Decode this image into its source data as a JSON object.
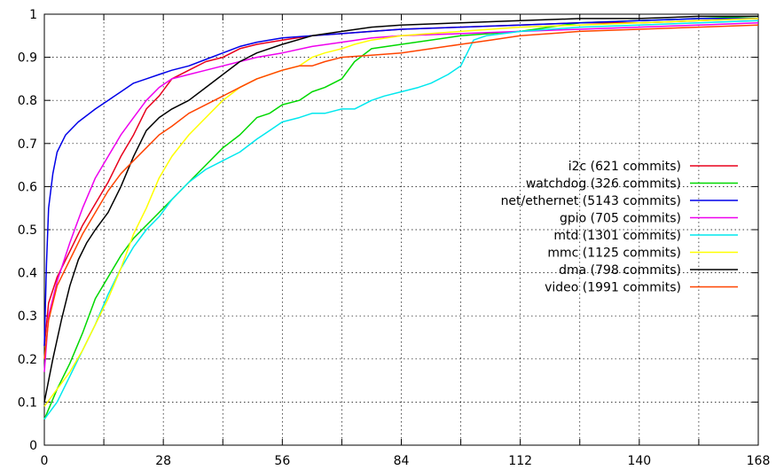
{
  "chart_data": {
    "type": "line",
    "title": "",
    "xlabel": "",
    "ylabel": "",
    "xlim": [
      0,
      168
    ],
    "ylim": [
      0,
      1
    ],
    "xticks": [
      0,
      28,
      56,
      84,
      112,
      140,
      168
    ],
    "xtick_labels": [
      "0",
      "28",
      "56",
      "84",
      "112",
      "140",
      "168"
    ],
    "xgrid": [
      0,
      14,
      28,
      42,
      56,
      70,
      84,
      98,
      112,
      126,
      140,
      154,
      168
    ],
    "yticks": [
      0,
      0.1,
      0.2,
      0.3,
      0.4,
      0.5,
      0.6,
      0.7,
      0.8,
      0.9,
      1
    ],
    "ytick_labels": [
      "0",
      "0.1",
      "0.2",
      "0.3",
      "0.4",
      "0.5",
      "0.6",
      "0.7",
      "0.8",
      "0.9",
      "1"
    ],
    "grid": true,
    "grid_style": "dotted",
    "legend_position": "right-middle",
    "series": [
      {
        "name": "i2c (621 commits)",
        "color": "#e8001c",
        "x": [
          0,
          1,
          3,
          6,
          9,
          12,
          15,
          18,
          21,
          24,
          27,
          30,
          34,
          38,
          42,
          46,
          50,
          56,
          63,
          70,
          77,
          84,
          98,
          112,
          126,
          140,
          154,
          168
        ],
        "y": [
          0.23,
          0.33,
          0.39,
          0.45,
          0.51,
          0.56,
          0.61,
          0.67,
          0.72,
          0.78,
          0.81,
          0.85,
          0.87,
          0.89,
          0.9,
          0.92,
          0.93,
          0.94,
          0.95,
          0.955,
          0.96,
          0.965,
          0.97,
          0.975,
          0.98,
          0.98,
          0.985,
          0.99
        ]
      },
      {
        "name": "watchdog (326 commits)",
        "color": "#00d800",
        "x": [
          0,
          3,
          6,
          9,
          12,
          15,
          18,
          21,
          24,
          27,
          30,
          34,
          38,
          42,
          46,
          50,
          53,
          56,
          60,
          63,
          66,
          70,
          73,
          77,
          84,
          98,
          112,
          126,
          140,
          154,
          168
        ],
        "y": [
          0.06,
          0.13,
          0.19,
          0.26,
          0.34,
          0.39,
          0.44,
          0.48,
          0.51,
          0.54,
          0.57,
          0.61,
          0.65,
          0.69,
          0.72,
          0.76,
          0.77,
          0.79,
          0.8,
          0.82,
          0.83,
          0.85,
          0.89,
          0.92,
          0.93,
          0.95,
          0.96,
          0.98,
          0.985,
          0.99,
          0.995
        ]
      },
      {
        "name": "net/ethernet (5143 commits)",
        "color": "#0000e8",
        "x": [
          0,
          0.5,
          1,
          2,
          3,
          5,
          8,
          12,
          15,
          18,
          21,
          24,
          27,
          30,
          34,
          38,
          42,
          46,
          50,
          56,
          63,
          70,
          77,
          84,
          98,
          112,
          126,
          140,
          154,
          168
        ],
        "y": [
          0.23,
          0.42,
          0.55,
          0.63,
          0.68,
          0.72,
          0.75,
          0.78,
          0.8,
          0.82,
          0.84,
          0.85,
          0.86,
          0.87,
          0.88,
          0.895,
          0.91,
          0.925,
          0.935,
          0.945,
          0.95,
          0.955,
          0.96,
          0.965,
          0.97,
          0.975,
          0.98,
          0.985,
          0.99,
          0.99
        ]
      },
      {
        "name": "gpio (705 commits)",
        "color": "#ee00ee",
        "x": [
          0,
          1,
          3,
          6,
          9,
          12,
          15,
          18,
          21,
          24,
          27,
          30,
          34,
          38,
          42,
          46,
          50,
          56,
          63,
          70,
          77,
          84,
          98,
          112,
          126,
          140,
          154,
          168
        ],
        "y": [
          0.17,
          0.3,
          0.38,
          0.47,
          0.55,
          0.62,
          0.67,
          0.72,
          0.76,
          0.8,
          0.83,
          0.85,
          0.86,
          0.87,
          0.88,
          0.89,
          0.9,
          0.91,
          0.925,
          0.935,
          0.945,
          0.95,
          0.955,
          0.96,
          0.965,
          0.97,
          0.975,
          0.98
        ]
      },
      {
        "name": "mtd (1301 commits)",
        "color": "#00e8ee",
        "x": [
          0,
          3,
          6,
          9,
          12,
          15,
          18,
          21,
          24,
          27,
          30,
          34,
          38,
          42,
          46,
          50,
          53,
          56,
          60,
          63,
          66,
          70,
          73,
          77,
          80,
          84,
          88,
          91,
          95,
          98,
          101,
          104,
          108,
          112,
          126,
          140,
          154,
          168
        ],
        "y": [
          0.06,
          0.1,
          0.16,
          0.22,
          0.28,
          0.35,
          0.41,
          0.46,
          0.5,
          0.53,
          0.57,
          0.61,
          0.64,
          0.66,
          0.68,
          0.71,
          0.73,
          0.75,
          0.76,
          0.77,
          0.77,
          0.78,
          0.78,
          0.8,
          0.81,
          0.82,
          0.83,
          0.84,
          0.86,
          0.88,
          0.94,
          0.95,
          0.955,
          0.96,
          0.97,
          0.975,
          0.98,
          0.985
        ]
      },
      {
        "name": "mmc (1125 commits)",
        "color": "#ffff00",
        "x": [
          0,
          3,
          6,
          9,
          12,
          15,
          18,
          21,
          24,
          27,
          30,
          34,
          38,
          42,
          46,
          50,
          56,
          60,
          63,
          66,
          70,
          73,
          77,
          84,
          98,
          112,
          126,
          140,
          154,
          168
        ],
        "y": [
          0.09,
          0.13,
          0.17,
          0.22,
          0.28,
          0.34,
          0.41,
          0.49,
          0.55,
          0.62,
          0.67,
          0.72,
          0.76,
          0.8,
          0.83,
          0.85,
          0.87,
          0.88,
          0.9,
          0.91,
          0.92,
          0.93,
          0.94,
          0.95,
          0.96,
          0.97,
          0.975,
          0.98,
          0.985,
          0.99
        ]
      },
      {
        "name": "dma (798 commits)",
        "color": "#000000",
        "x": [
          0,
          2,
          4,
          6,
          8,
          10,
          12,
          15,
          18,
          21,
          24,
          27,
          30,
          34,
          38,
          42,
          46,
          50,
          56,
          63,
          70,
          77,
          84,
          98,
          112,
          126,
          140,
          154,
          168
        ],
        "y": [
          0.1,
          0.2,
          0.29,
          0.37,
          0.43,
          0.47,
          0.5,
          0.54,
          0.6,
          0.67,
          0.73,
          0.76,
          0.78,
          0.8,
          0.83,
          0.86,
          0.89,
          0.91,
          0.93,
          0.95,
          0.96,
          0.97,
          0.975,
          0.98,
          0.985,
          0.99,
          0.99,
          0.995,
          0.995
        ]
      },
      {
        "name": "video (1991 commits)",
        "color": "#ff4400",
        "x": [
          0,
          1,
          3,
          6,
          9,
          12,
          15,
          18,
          21,
          24,
          27,
          30,
          34,
          38,
          42,
          46,
          50,
          56,
          60,
          63,
          66,
          70,
          77,
          84,
          91,
          98,
          105,
          112,
          119,
          126,
          140,
          154,
          168
        ],
        "y": [
          0.2,
          0.29,
          0.37,
          0.43,
          0.49,
          0.54,
          0.59,
          0.63,
          0.66,
          0.69,
          0.72,
          0.74,
          0.77,
          0.79,
          0.81,
          0.83,
          0.85,
          0.87,
          0.88,
          0.88,
          0.89,
          0.9,
          0.905,
          0.91,
          0.92,
          0.93,
          0.94,
          0.95,
          0.955,
          0.96,
          0.965,
          0.97,
          0.975
        ]
      }
    ]
  }
}
